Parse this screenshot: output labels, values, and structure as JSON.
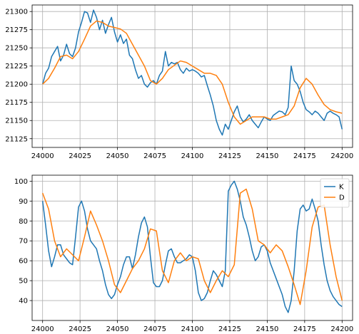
{
  "chart_data": [
    {
      "type": "line",
      "title": "",
      "xlabel": "",
      "ylabel": "",
      "xlim": [
        23993,
        24207
      ],
      "ylim": [
        21113,
        21309
      ],
      "xticks": [
        24000,
        24025,
        24050,
        24075,
        24100,
        24125,
        24150,
        24175,
        24200
      ],
      "yticks": [
        21125,
        21150,
        21175,
        21200,
        21225,
        21250,
        21275,
        21300
      ],
      "grid": true,
      "legend": false,
      "series": [
        {
          "color": "#1f77b4",
          "x": [
            24000,
            24002,
            24004,
            24006,
            24008,
            24010,
            24012,
            24014,
            24016,
            24018,
            24020,
            24022,
            24024,
            24026,
            24028,
            24030,
            24032,
            24034,
            24036,
            24038,
            24040,
            24042,
            24044,
            24046,
            24048,
            24050,
            24052,
            24054,
            24056,
            24058,
            24060,
            24062,
            24064,
            24066,
            24068,
            24070,
            24072,
            24074,
            24076,
            24078,
            24080,
            24082,
            24084,
            24086,
            24088,
            24090,
            24092,
            24094,
            24096,
            24098,
            24100,
            24102,
            24104,
            24106,
            24108,
            24110,
            24112,
            24114,
            24116,
            24118,
            24120,
            24122,
            24124,
            24126,
            24128,
            24130,
            24132,
            24134,
            24136,
            24138,
            24140,
            24142,
            24144,
            24146,
            24148,
            24150,
            24152,
            24154,
            24156,
            24158,
            24160,
            24162,
            24164,
            24166,
            24168,
            24170,
            24172,
            24174,
            24176,
            24178,
            24180,
            24182,
            24184,
            24186,
            24188,
            24190,
            24192,
            24194,
            24196,
            24198,
            24200
          ],
          "y": [
            21200,
            21215,
            21222,
            21238,
            21245,
            21252,
            21232,
            21240,
            21255,
            21242,
            21238,
            21250,
            21272,
            21285,
            21300,
            21298,
            21285,
            21302,
            21292,
            21275,
            21288,
            21270,
            21282,
            21292,
            21272,
            21258,
            21268,
            21256,
            21262,
            21240,
            21235,
            21220,
            21208,
            21212,
            21200,
            21196,
            21202,
            21205,
            21200,
            21212,
            21218,
            21245,
            21225,
            21230,
            21228,
            21230,
            21220,
            21215,
            21222,
            21218,
            21220,
            21218,
            21215,
            21210,
            21212,
            21198,
            21185,
            21170,
            21150,
            21138,
            21130,
            21145,
            21138,
            21150,
            21162,
            21170,
            21155,
            21148,
            21152,
            21158,
            21150,
            21145,
            21140,
            21148,
            21155,
            21152,
            21150,
            21157,
            21160,
            21163,
            21162,
            21158,
            21168,
            21225,
            21205,
            21200,
            21190,
            21175,
            21165,
            21162,
            21158,
            21163,
            21160,
            21155,
            21150,
            21160,
            21163,
            21160,
            21158,
            21155,
            21138
          ]
        },
        {
          "color": "#ff7f0e",
          "x": [
            24000,
            24004,
            24008,
            24012,
            24016,
            24020,
            24024,
            24028,
            24032,
            24036,
            24040,
            24044,
            24048,
            24052,
            24056,
            24060,
            24064,
            24068,
            24072,
            24076,
            24080,
            24084,
            24088,
            24092,
            24096,
            24100,
            24104,
            24108,
            24112,
            24116,
            24120,
            24124,
            24128,
            24132,
            24136,
            24140,
            24144,
            24148,
            24152,
            24156,
            24160,
            24164,
            24168,
            24172,
            24176,
            24180,
            24184,
            24188,
            24192,
            24196,
            24200
          ],
          "y": [
            21200,
            21208,
            21222,
            21238,
            21240,
            21235,
            21245,
            21262,
            21280,
            21287,
            21285,
            21280,
            21278,
            21276,
            21270,
            21255,
            21240,
            21225,
            21205,
            21200,
            21208,
            21220,
            21226,
            21232,
            21230,
            21225,
            21220,
            21215,
            21215,
            21212,
            21200,
            21175,
            21155,
            21145,
            21150,
            21155,
            21155,
            21155,
            21152,
            21152,
            21155,
            21158,
            21170,
            21195,
            21208,
            21200,
            21185,
            21172,
            21165,
            21162,
            21160
          ]
        }
      ]
    },
    {
      "type": "line",
      "title": "",
      "xlabel": "",
      "ylabel": "",
      "xlim": [
        23993,
        24207
      ],
      "ylim": [
        30,
        103
      ],
      "xticks": [
        24000,
        24025,
        24050,
        24075,
        24100,
        24125,
        24150,
        24175,
        24200
      ],
      "yticks": [
        40,
        50,
        60,
        70,
        80,
        90,
        100
      ],
      "grid": true,
      "legend": "top-right",
      "series": [
        {
          "name": "K",
          "color": "#1f77b4",
          "x": [
            24000,
            24002,
            24004,
            24006,
            24008,
            24010,
            24012,
            24014,
            24016,
            24018,
            24020,
            24022,
            24024,
            24026,
            24028,
            24030,
            24032,
            24034,
            24036,
            24038,
            24040,
            24042,
            24044,
            24046,
            24048,
            24050,
            24052,
            24054,
            24056,
            24058,
            24060,
            24062,
            24064,
            24066,
            24068,
            24070,
            24072,
            24074,
            24076,
            24078,
            24080,
            24082,
            24084,
            24086,
            24088,
            24090,
            24092,
            24094,
            24096,
            24098,
            24100,
            24102,
            24104,
            24106,
            24108,
            24110,
            24112,
            24114,
            24116,
            24118,
            24120,
            24122,
            24124,
            24126,
            24128,
            24130,
            24132,
            24134,
            24136,
            24138,
            24140,
            24142,
            24144,
            24146,
            24148,
            24150,
            24152,
            24154,
            24156,
            24158,
            24160,
            24162,
            24164,
            24166,
            24168,
            24170,
            24172,
            24174,
            24176,
            24178,
            24180,
            24182,
            24184,
            24186,
            24188,
            24190,
            24192,
            24194,
            24196,
            24198,
            24200
          ],
          "y": [
            90,
            78,
            65,
            57,
            62,
            68,
            68,
            63,
            61,
            59,
            58,
            72,
            87,
            90,
            85,
            76,
            70,
            68,
            66,
            60,
            55,
            48,
            43,
            41,
            43,
            48,
            52,
            58,
            62,
            62,
            56,
            63,
            72,
            79,
            82,
            77,
            62,
            49,
            47,
            47,
            50,
            58,
            65,
            66,
            62,
            59,
            59,
            60,
            61,
            63,
            62,
            55,
            44,
            40,
            41,
            44,
            50,
            55,
            53,
            50,
            47,
            55,
            95,
            98,
            100,
            96,
            90,
            82,
            78,
            72,
            65,
            60,
            62,
            67,
            68,
            65,
            59,
            55,
            51,
            47,
            43,
            37,
            34,
            40,
            55,
            75,
            86,
            88,
            85,
            86,
            91,
            86,
            80,
            68,
            58,
            50,
            45,
            42,
            40,
            38,
            37
          ]
        },
        {
          "name": "D",
          "color": "#ff7f0e",
          "x": [
            24000,
            24004,
            24008,
            24012,
            24016,
            24020,
            24024,
            24028,
            24032,
            24036,
            24040,
            24044,
            24048,
            24052,
            24056,
            24060,
            24064,
            24068,
            24072,
            24076,
            24080,
            24084,
            24088,
            24092,
            24096,
            24100,
            24104,
            24108,
            24112,
            24116,
            24120,
            24124,
            24128,
            24132,
            24136,
            24140,
            24144,
            24148,
            24152,
            24156,
            24160,
            24164,
            24168,
            24172,
            24176,
            24180,
            24184,
            24188,
            24192,
            24196,
            24200
          ],
          "y": [
            94,
            86,
            70,
            62,
            66,
            63,
            60,
            72,
            85,
            78,
            70,
            60,
            48,
            44,
            50,
            56,
            60,
            66,
            76,
            75,
            55,
            49,
            60,
            64,
            60,
            62,
            61,
            50,
            44,
            50,
            55,
            52,
            58,
            94,
            96,
            86,
            70,
            68,
            64,
            68,
            65,
            57,
            48,
            38,
            55,
            77,
            87,
            88,
            68,
            52,
            40
          ]
        }
      ]
    }
  ]
}
